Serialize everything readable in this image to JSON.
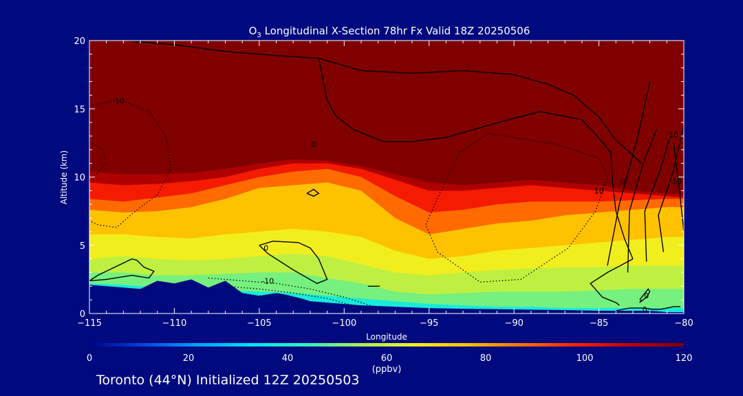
{
  "figure": {
    "footer": "Toronto (44°N) Initialized 12Z 20250503"
  },
  "chart_data": {
    "type": "heatmap",
    "title": "O3 Longitudinal X-Section 78hr  Fx Valid 18Z 20250506",
    "title_species": "O",
    "title_subscript": "3",
    "title_rest": " Longitudinal X-Section 78hr  Fx Valid 18Z 20250506",
    "xlabel": "Longitude",
    "ylabel": "Altitude (km)",
    "xlim": [
      -115,
      -80
    ],
    "ylim": [
      0,
      20
    ],
    "xticks": [
      -115,
      -110,
      -105,
      -100,
      -95,
      -90,
      -85,
      -80
    ],
    "yticks": [
      0,
      5,
      10,
      15,
      20
    ],
    "colorbar": {
      "label": "(ppbv)",
      "range": [
        0,
        120
      ],
      "ticks": [
        0,
        20,
        40,
        60,
        80,
        100,
        120
      ],
      "colors": [
        "#00008b",
        "#0044dd",
        "#00a0ff",
        "#00e5f0",
        "#30f0c0",
        "#a8f050",
        "#f0f020",
        "#ffc000",
        "#ff7000",
        "#ff2000",
        "#c00000",
        "#800000"
      ]
    },
    "terrain_color": "#000a7e",
    "ozone_layers": [
      {
        "value": 20,
        "x": [
          -115,
          -113,
          -111,
          -109,
          -107,
          -105,
          -103,
          -101,
          -99,
          -97,
          -95,
          -93,
          -91,
          -89,
          -87,
          -85,
          -83,
          -81,
          -80
        ],
        "top": [
          1.2,
          1.1,
          1.0,
          0.9,
          0.8,
          0.7,
          0.6,
          0.5,
          0.4,
          0.3,
          0.2,
          0.15,
          0.1,
          0.1,
          0.1,
          0.1,
          0.1,
          0.1,
          0.1
        ]
      },
      {
        "value": 38,
        "x": [
          -115,
          -113,
          -111,
          -109,
          -107,
          -105,
          -103,
          -101,
          -99,
          -97,
          -95,
          -93,
          -91,
          -89,
          -87,
          -85,
          -83,
          -81,
          -80
        ],
        "top": [
          2.2,
          2.1,
          1.9,
          1.8,
          1.7,
          1.6,
          1.5,
          1.3,
          1.1,
          0.9,
          0.7,
          0.6,
          0.5,
          0.5,
          0.4,
          0.4,
          0.4,
          0.4,
          0.4
        ]
      },
      {
        "value": 50,
        "x": [
          -115,
          -113,
          -111,
          -109,
          -107,
          -105,
          -103,
          -101,
          -99,
          -97,
          -95,
          -93,
          -91,
          -89,
          -87,
          -85,
          -83,
          -81,
          -80
        ],
        "top": [
          3.0,
          3.0,
          2.8,
          2.8,
          2.9,
          3.0,
          3.0,
          2.6,
          2.2,
          1.6,
          1.4,
          1.5,
          1.6,
          1.6,
          1.6,
          1.7,
          1.8,
          1.8,
          1.8
        ]
      },
      {
        "value": 58,
        "x": [
          -115,
          -113,
          -111,
          -109,
          -107,
          -105,
          -103,
          -101,
          -99,
          -97,
          -95,
          -93,
          -91,
          -89,
          -87,
          -85,
          -83,
          -81,
          -80
        ],
        "top": [
          4.0,
          4.2,
          4.0,
          3.9,
          4.0,
          4.2,
          4.4,
          4.2,
          3.6,
          3.0,
          2.8,
          3.0,
          3.2,
          3.3,
          3.4,
          3.4,
          3.5,
          3.5,
          3.5
        ]
      },
      {
        "value": 66,
        "x": [
          -115,
          -113,
          -111,
          -109,
          -107,
          -105,
          -103,
          -101,
          -99,
          -97,
          -95,
          -93,
          -91,
          -89,
          -87,
          -85,
          -83,
          -81,
          -80
        ],
        "top": [
          5.8,
          5.8,
          5.6,
          5.5,
          5.8,
          6.0,
          6.2,
          6.0,
          5.6,
          4.6,
          4.0,
          4.2,
          4.6,
          4.8,
          5.0,
          5.2,
          5.4,
          5.6,
          5.6
        ]
      },
      {
        "value": 76,
        "x": [
          -115,
          -113,
          -111,
          -109,
          -107,
          -105,
          -103,
          -101,
          -99,
          -97,
          -95,
          -93,
          -91,
          -89,
          -87,
          -85,
          -83,
          -81,
          -80
        ],
        "top": [
          7.6,
          7.4,
          7.5,
          7.8,
          8.4,
          9.2,
          9.4,
          9.6,
          9.0,
          7.0,
          5.8,
          6.2,
          6.6,
          6.8,
          7.2,
          7.4,
          7.6,
          7.8,
          7.8
        ]
      },
      {
        "value": 88,
        "x": [
          -115,
          -113,
          -111,
          -109,
          -107,
          -105,
          -103,
          -101,
          -99,
          -97,
          -95,
          -93,
          -91,
          -89,
          -87,
          -85,
          -83,
          -81,
          -80
        ],
        "top": [
          8.4,
          8.2,
          8.5,
          8.8,
          9.4,
          10.0,
          10.4,
          10.6,
          10.0,
          8.6,
          7.4,
          7.6,
          8.0,
          8.2,
          8.2,
          8.2,
          8.3,
          8.4,
          8.4
        ]
      },
      {
        "value": 100,
        "x": [
          -115,
          -113,
          -111,
          -109,
          -107,
          -105,
          -103,
          -101,
          -99,
          -97,
          -95,
          -93,
          -91,
          -89,
          -87,
          -85,
          -83,
          -81,
          -80
        ],
        "top": [
          9.6,
          9.4,
          9.5,
          9.7,
          10.0,
          10.6,
          11.0,
          11.0,
          10.6,
          9.8,
          9.0,
          9.0,
          9.2,
          9.4,
          9.2,
          9.0,
          8.8,
          8.6,
          8.5
        ]
      },
      {
        "value": 112,
        "x": [
          -115,
          -113,
          -111,
          -109,
          -107,
          -105,
          -103,
          -101,
          -99,
          -97,
          -95,
          -93,
          -91,
          -89,
          -87,
          -85,
          -83,
          -81,
          -80
        ],
        "top": [
          10.4,
          10.2,
          10.2,
          10.3,
          10.6,
          11.0,
          11.3,
          11.2,
          10.8,
          10.2,
          9.6,
          9.4,
          9.6,
          9.8,
          9.6,
          9.4,
          9.0,
          8.8,
          8.7
        ]
      },
      {
        "value": 120,
        "x": [
          -115,
          -80
        ],
        "top": [
          20,
          20
        ]
      }
    ],
    "terrain": {
      "x": [
        -115,
        -112,
        -111,
        -110,
        -109,
        -108,
        -107,
        -106,
        -105,
        -104,
        -103.5,
        -102.5,
        -102,
        -101,
        -100,
        -99,
        -98,
        -97,
        -96,
        -95,
        -93,
        -90,
        -87,
        -85,
        -83,
        -82,
        -81,
        -80
      ],
      "y": [
        2.1,
        1.8,
        2.4,
        2.2,
        2.5,
        1.9,
        2.4,
        1.5,
        1.3,
        1.5,
        1.4,
        1.1,
        0.9,
        0.8,
        0.7,
        0.6,
        0.55,
        0.5,
        0.45,
        0.4,
        0.35,
        0.3,
        0.25,
        0.2,
        0.2,
        0.2,
        0.1,
        0.1
      ]
    },
    "contours": [
      {
        "label": "0",
        "style": "solid",
        "x": [
          -112.8,
          -110,
          -107,
          -104,
          -101.5,
          -99,
          -96,
          -93,
          -90,
          -88,
          -86.5,
          -85,
          -84,
          -83,
          -82.5
        ],
        "y": [
          20,
          19.7,
          19.2,
          18.9,
          18.7,
          17.8,
          17.6,
          17.8,
          17.5,
          16.8,
          16.0,
          14.4,
          12.7,
          11.6,
          11.0
        ]
      },
      {
        "label": "0",
        "style": "solid",
        "x": [
          -101.5,
          -101,
          -100.5,
          -99.5,
          -97.7,
          -96,
          -94,
          -91.5,
          -88.5,
          -86,
          -85.1,
          -84.3,
          -84.2,
          -84.0,
          -83.5,
          -83.0
        ],
        "y": [
          18.7,
          15.6,
          14.5,
          13.5,
          12.6,
          12.6,
          12.9,
          13.8,
          14.8,
          14.2,
          13.0,
          11.8,
          9.6,
          7.5,
          5.5,
          4.0
        ]
      },
      {
        "label": "0",
        "style": "solid",
        "x": [
          -83.0,
          -84.5,
          -85.5,
          -84.8,
          -84.0,
          -83.8
        ],
        "y": [
          4.0,
          3.0,
          2.2,
          1.2,
          0.8,
          0.6
        ]
      },
      {
        "label": "0",
        "style": "solid",
        "x": [
          -105,
          -104.2,
          -102.7,
          -102,
          -101.5,
          -101.0,
          -101.6,
          -103,
          -104.5,
          -105
        ],
        "y": [
          5.0,
          5.3,
          5.2,
          4.8,
          4.0,
          2.5,
          2.2,
          3.2,
          4.4,
          5.0
        ]
      },
      {
        "label": "0",
        "style": "solid",
        "x": [
          -115,
          -114.5,
          -113.5,
          -112.5,
          -112.2,
          -111.8,
          -111.2,
          -111.5,
          -112.5,
          -114.0,
          -115
        ],
        "y": [
          2.4,
          2.8,
          3.4,
          4.0,
          3.9,
          3.4,
          3.1,
          2.6,
          2.8,
          2.5,
          2.4
        ]
      },
      {
        "label": "0",
        "style": "solid",
        "x": [
          -84.0,
          -83.2,
          -82.4,
          -81.8,
          -81.4,
          -81.0,
          -80.6,
          -80.2
        ],
        "y": [
          0.2,
          0.4,
          0.4,
          0.3,
          0.3,
          0.4,
          0.5,
          0.5
        ]
      },
      {
        "label": "",
        "style": "solid",
        "x": [
          -102.2,
          -101.8,
          -101.5,
          -101.8,
          -102.2
        ],
        "y": [
          8.8,
          9.1,
          8.8,
          8.6,
          8.8
        ]
      },
      {
        "label": "",
        "style": "solid",
        "x": [
          -82.6,
          -82.1,
          -82.0,
          -82.2,
          -82.6,
          -82.5
        ],
        "y": [
          1.0,
          1.8,
          1.6,
          1.2,
          0.8,
          1.0
        ]
      },
      {
        "label": "",
        "style": "solid",
        "x": [
          -98.6,
          -97.9
        ],
        "y": [
          2.0,
          2.0
        ]
      },
      {
        "label": "",
        "style": "solid",
        "x": [
          -82.0,
          -82.7,
          -83.8,
          -84.5
        ],
        "y": [
          17.0,
          13.0,
          8.0,
          3.5
        ]
      },
      {
        "label": "",
        "style": "solid",
        "x": [
          -81.6,
          -82.4,
          -83.2,
          -83.3
        ],
        "y": [
          13.5,
          11.0,
          7.5,
          3.0
        ]
      },
      {
        "label": "",
        "style": "solid",
        "x": [
          -80.8,
          -81.4,
          -82.3,
          -82.2
        ],
        "y": [
          13.0,
          10.5,
          7.5,
          3.8
        ]
      },
      {
        "label": "",
        "style": "solid",
        "x": [
          -80.0,
          -80.6,
          -81.5,
          -81.2
        ],
        "y": [
          13.8,
          10.5,
          7.2,
          4.5
        ]
      },
      {
        "label": "10",
        "style": "solid",
        "x": [
          -80.6,
          -80.3,
          -80.0
        ],
        "y": [
          12.5,
          9.5,
          6.0
        ]
      },
      {
        "label": "-10",
        "style": "dotted",
        "x": [
          -115,
          -113.3,
          -111.5,
          -110.5,
          -110.2,
          -111.0,
          -112.3,
          -113.4,
          -114.5,
          -115
        ],
        "y": [
          15.2,
          15.7,
          14.8,
          13.0,
          10.6,
          8.7,
          7.5,
          6.3,
          6.5,
          6.8
        ]
      },
      {
        "label": "-10",
        "style": "dotted",
        "x": [
          -115,
          -114.2,
          -114.0,
          -114.6,
          -115
        ],
        "y": [
          12.6,
          12.0,
          11.0,
          10.2,
          10.0
        ]
      },
      {
        "label": "-10",
        "style": "dotted",
        "x": [
          -91.5,
          -87.5,
          -85.0,
          -84.5,
          -85.2,
          -86.8,
          -89.6,
          -92.0,
          -94.5,
          -95.2,
          -94.3,
          -93.2,
          -91.5
        ],
        "y": [
          13.2,
          12.4,
          11.4,
          10.0,
          7.5,
          4.8,
          2.5,
          2.3,
          4.5,
          6.5,
          9.0,
          11.8,
          13.2
        ]
      },
      {
        "label": "-10",
        "style": "dotted",
        "x": [
          -108,
          -106,
          -104,
          -102,
          -100,
          -98.5,
          -97.5
        ],
        "y": [
          2.6,
          2.4,
          2.2,
          1.8,
          1.2,
          0.6,
          0.3
        ]
      },
      {
        "label": "",
        "style": "dotted",
        "x": [
          -107,
          -105,
          -103,
          -101,
          -99.5,
          -98.5
        ],
        "y": [
          2.0,
          1.8,
          1.5,
          1.1,
          0.6,
          0.2
        ]
      },
      {
        "label": "",
        "style": "dotted",
        "x": [
          -105,
          -103,
          -101.5,
          -100.2
        ],
        "y": [
          1.3,
          1.0,
          0.6,
          0.2
        ]
      },
      {
        "label": "",
        "style": "dotted",
        "x": [
          -103,
          -102,
          -101.2
        ],
        "y": [
          0.6,
          0.4,
          0.2
        ]
      }
    ],
    "contour_labels": [
      {
        "text": "-10",
        "x": -113.3,
        "y": 15.6
      },
      {
        "text": "0",
        "x": -101.8,
        "y": 12.4
      },
      {
        "text": "0",
        "x": -104.6,
        "y": 4.8
      },
      {
        "text": "-10",
        "x": -104.5,
        "y": 2.4
      },
      {
        "text": "10",
        "x": -85.0,
        "y": 9.0
      },
      {
        "text": "0",
        "x": -83.6,
        "y": 9.7
      },
      {
        "text": "0",
        "x": -82.3,
        "y": 0.3
      },
      {
        "text": "0",
        "x": -82.2,
        "y": 1.3
      },
      {
        "text": "10",
        "x": -80.6,
        "y": 13.1
      },
      {
        "text": "10",
        "x": -80.4,
        "y": 9.7
      },
      {
        "text": "0",
        "x": -112.2,
        "y": 20.0
      }
    ]
  }
}
